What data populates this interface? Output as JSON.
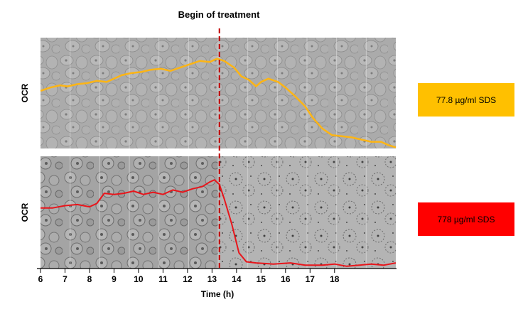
{
  "chart_data": {
    "type": "line",
    "title": "Begin of treatment",
    "xlabel": "Time (h)",
    "ylabel": "OCR",
    "xticks": [
      "6",
      "7",
      "8",
      "9",
      "10",
      "11",
      "12",
      "13",
      "14",
      "15",
      "16",
      "17",
      "18"
    ],
    "xlim": [
      6,
      20.5
    ],
    "treatment_start_x": 13.3,
    "grid": false,
    "panels": [
      {
        "ylabel": "OCR",
        "series_label": "77.8 µg/ml SDS",
        "color": "#fdb515",
        "label_bg": "#ffc000",
        "ylim": [
          0,
          1
        ],
        "x": [
          6.0,
          6.4,
          6.8,
          7.1,
          7.5,
          7.9,
          8.3,
          8.7,
          9.0,
          9.3,
          9.7,
          10.1,
          10.5,
          10.9,
          11.3,
          11.7,
          12.1,
          12.5,
          12.9,
          13.2,
          13.5,
          13.9,
          14.2,
          14.5,
          14.8,
          15.0,
          15.3,
          15.7,
          16.0,
          16.4,
          16.8,
          17.1,
          17.5,
          17.9,
          18.3,
          18.7,
          19.1,
          19.5,
          19.9,
          20.2,
          20.5
        ],
        "y": [
          0.52,
          0.55,
          0.57,
          0.56,
          0.58,
          0.59,
          0.61,
          0.6,
          0.63,
          0.66,
          0.68,
          0.69,
          0.71,
          0.72,
          0.7,
          0.73,
          0.76,
          0.79,
          0.78,
          0.81,
          0.79,
          0.73,
          0.65,
          0.62,
          0.56,
          0.6,
          0.63,
          0.6,
          0.55,
          0.47,
          0.38,
          0.28,
          0.18,
          0.12,
          0.11,
          0.1,
          0.08,
          0.06,
          0.06,
          0.03,
          0.01
        ]
      },
      {
        "ylabel": "OCR",
        "series_label": "778 µg/ml  SDS",
        "color": "#e8151b",
        "label_bg": "#ff0000",
        "ylim": [
          0,
          1
        ],
        "x": [
          6.0,
          6.5,
          7.0,
          7.5,
          8.0,
          8.3,
          8.6,
          9.0,
          9.4,
          9.8,
          10.2,
          10.6,
          11.0,
          11.4,
          11.8,
          12.2,
          12.6,
          12.9,
          13.1,
          13.3,
          13.5,
          13.8,
          14.1,
          14.4,
          14.8,
          15.5,
          16.2,
          16.8,
          17.5,
          18.0,
          18.5,
          19.0,
          19.5,
          20.0,
          20.5
        ],
        "y": [
          0.54,
          0.54,
          0.56,
          0.57,
          0.55,
          0.58,
          0.67,
          0.66,
          0.67,
          0.69,
          0.66,
          0.68,
          0.66,
          0.7,
          0.68,
          0.71,
          0.73,
          0.77,
          0.79,
          0.75,
          0.62,
          0.4,
          0.14,
          0.06,
          0.05,
          0.04,
          0.05,
          0.03,
          0.03,
          0.04,
          0.02,
          0.03,
          0.04,
          0.03,
          0.05
        ]
      }
    ]
  },
  "colors": {
    "image_bg": "#a9a9a9",
    "marker": "#c00000"
  }
}
